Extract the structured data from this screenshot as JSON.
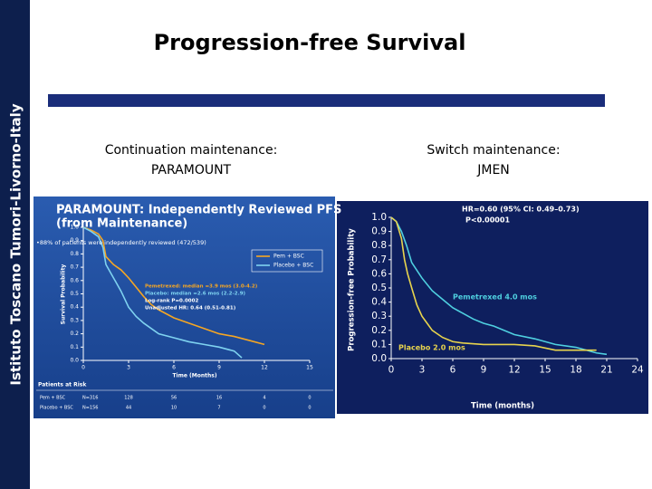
{
  "slide": {
    "sidebar": "Istituto Toscano Tumori-Livorno-Italy",
    "title": "Progression-free Survival",
    "left_caption": [
      "Continuation maintenance:",
      "PARAMOUNT"
    ],
    "right_caption": [
      "Switch maintenance:",
      "JMEN"
    ]
  },
  "chart_data": [
    {
      "type": "line",
      "title": [
        "PARAMOUNT: Independently Reviewed PFS",
        "(from Maintenance)"
      ],
      "subtitle": "•88% of patients were independently reviewed (472/539)",
      "x_label": "Time (Months)",
      "y_label": "Survival Probability",
      "xlim": [
        0,
        15
      ],
      "ylim": [
        0,
        1
      ],
      "xticks": [
        0,
        3,
        6,
        9,
        12,
        15
      ],
      "yticks": [
        {
          "value": 0,
          "label": "0.0"
        },
        {
          "value": 0.1,
          "label": "0.1"
        },
        {
          "value": 0.2,
          "label": "0.2"
        },
        {
          "value": 0.3,
          "label": "0.3"
        },
        {
          "value": 0.4,
          "label": "0.4"
        },
        {
          "value": 0.5,
          "label": "0.5"
        },
        {
          "value": 0.6,
          "label": "0.6"
        },
        {
          "value": 0.7,
          "label": "0.7"
        },
        {
          "value": 0.8,
          "label": "0.8"
        },
        {
          "value": 0.9,
          "label": "0.9"
        },
        {
          "value": 1,
          "label": "1.0"
        }
      ],
      "legend": "upper right",
      "series": [
        {
          "name": "Pem + BSC",
          "color": "#f5a623",
          "x": [
            0,
            0.5,
            1,
            1.3,
            1.5,
            2,
            2.5,
            3,
            3.5,
            4,
            4.5,
            5,
            6,
            7,
            8,
            9,
            10,
            11,
            12
          ],
          "values": [
            1,
            0.98,
            0.95,
            0.9,
            0.78,
            0.72,
            0.68,
            0.62,
            0.55,
            0.48,
            0.42,
            0.38,
            0.32,
            0.28,
            0.24,
            0.2,
            0.18,
            0.15,
            0.12
          ]
        },
        {
          "name": "Placebo + BSC",
          "color": "#7fd3f0",
          "x": [
            0,
            0.5,
            1,
            1.3,
            1.5,
            2,
            2.5,
            3,
            3.5,
            4,
            5,
            6,
            7,
            8,
            9,
            10,
            10.5
          ],
          "values": [
            1,
            0.97,
            0.93,
            0.85,
            0.72,
            0.62,
            0.52,
            0.4,
            0.33,
            0.28,
            0.2,
            0.17,
            0.14,
            0.12,
            0.1,
            0.07,
            0.02
          ]
        }
      ],
      "annotations": [
        "Pemetrexed: median =3.9 mos (3.0-4.2)",
        "Placebo: median =2.6 mos (2.2-2.9)",
        "Log-rank P=0.0002",
        "Unadjusted HR: 0.64 (0.51-0.81)"
      ],
      "risk_table": {
        "title": "Patients at Risk",
        "rows": [
          {
            "label": "Pem + BSC",
            "n": "N=316",
            "counts": [
              128,
              56,
              16,
              4,
              0
            ]
          },
          {
            "label": "Placebo + BSC",
            "n": "N=156",
            "counts": [
              44,
              10,
              7,
              0,
              0
            ]
          }
        ]
      }
    },
    {
      "type": "line",
      "x_label": "Time (months)",
      "y_label": "Progression-free  Probability",
      "xlim": [
        0,
        24
      ],
      "ylim": [
        0,
        1
      ],
      "xticks": [
        0,
        3,
        6,
        9,
        12,
        15,
        18,
        21,
        24
      ],
      "yticks": [
        {
          "value": 0,
          "label": "0.0"
        },
        {
          "value": 0.1,
          "label": "0.1"
        },
        {
          "value": 0.2,
          "label": "0.2"
        },
        {
          "value": 0.3,
          "label": "0.3"
        },
        {
          "value": 0.4,
          "label": "0.4"
        },
        {
          "value": 0.5,
          "label": "0.5"
        },
        {
          "value": 0.6,
          "label": "0.6"
        },
        {
          "value": 0.7,
          "label": "0.7"
        },
        {
          "value": 0.8,
          "label": "0.8"
        },
        {
          "value": 0.9,
          "label": "0.9"
        },
        {
          "value": 1,
          "label": "1.0"
        }
      ],
      "series": [
        {
          "color": "#4fd0e0",
          "x": [
            0,
            0.5,
            1,
            1.5,
            2,
            3,
            4,
            5,
            6,
            7,
            8,
            9,
            10,
            12,
            14,
            16,
            18,
            19,
            20,
            21
          ],
          "values": [
            1,
            0.97,
            0.9,
            0.8,
            0.68,
            0.57,
            0.48,
            0.42,
            0.36,
            0.32,
            0.28,
            0.25,
            0.23,
            0.17,
            0.14,
            0.1,
            0.08,
            0.06,
            0.04,
            0.03
          ]
        },
        {
          "color": "#e8d44d",
          "x": [
            0,
            0.5,
            1,
            1.3,
            1.6,
            2,
            2.5,
            3,
            3.5,
            4,
            5,
            6,
            7,
            9,
            12,
            14,
            16,
            18,
            20
          ],
          "values": [
            1,
            0.97,
            0.85,
            0.7,
            0.6,
            0.5,
            0.38,
            0.3,
            0.25,
            0.2,
            0.15,
            0.12,
            0.11,
            0.1,
            0.1,
            0.09,
            0.06,
            0.06,
            0.06
          ]
        }
      ],
      "annotations": [
        "HR=0.60 (95% CI: 0.49–0.73)",
        "P<0.00001",
        "Pemetrexed 4.0 mos",
        "Placebo 2.0 mos"
      ]
    }
  ]
}
